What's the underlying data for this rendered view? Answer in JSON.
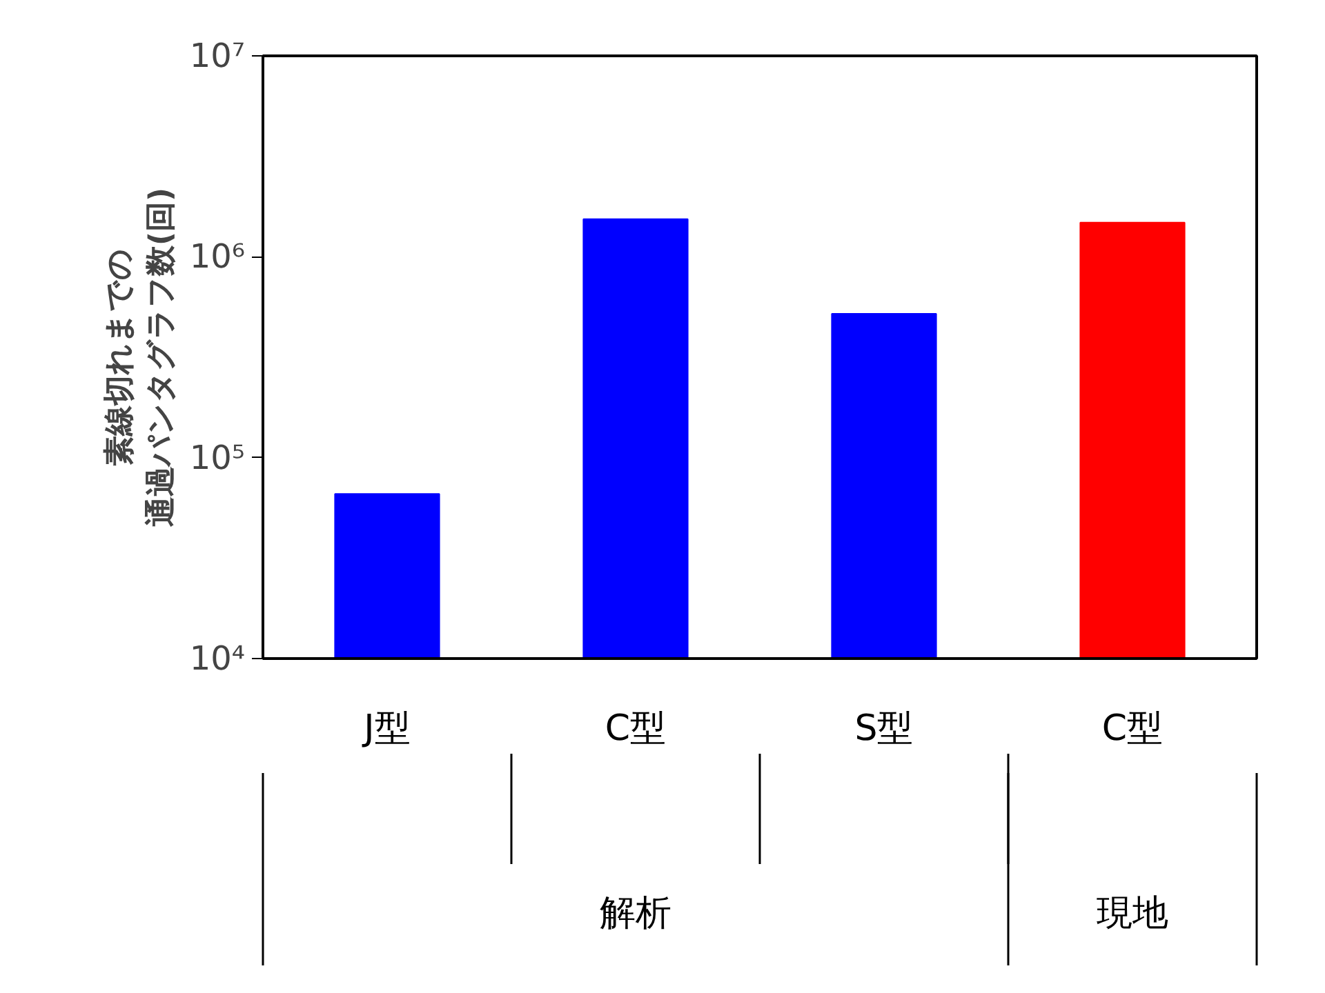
{
  "chart_data": {
    "type": "bar",
    "ylabel": "素線切れまでの通過パンタグラフ数(回)",
    "categories": [
      "J型",
      "C型",
      "S型",
      "C型"
    ],
    "values": [
      66000,
      1540000,
      520000,
      1480000
    ],
    "colors": [
      "#0000ff",
      "#0000ff",
      "#0000ff",
      "#ff0000"
    ],
    "log": true,
    "ylim": [
      10000,
      10000000
    ],
    "yticks": [
      {
        "value": 10000,
        "label": "10⁴"
      },
      {
        "value": 100000,
        "label": "10⁵"
      },
      {
        "value": 1000000,
        "label": "10⁶"
      },
      {
        "value": 10000000,
        "label": "10⁷"
      }
    ],
    "annotations": [
      "解析",
      "現地"
    ],
    "grid": false
  }
}
